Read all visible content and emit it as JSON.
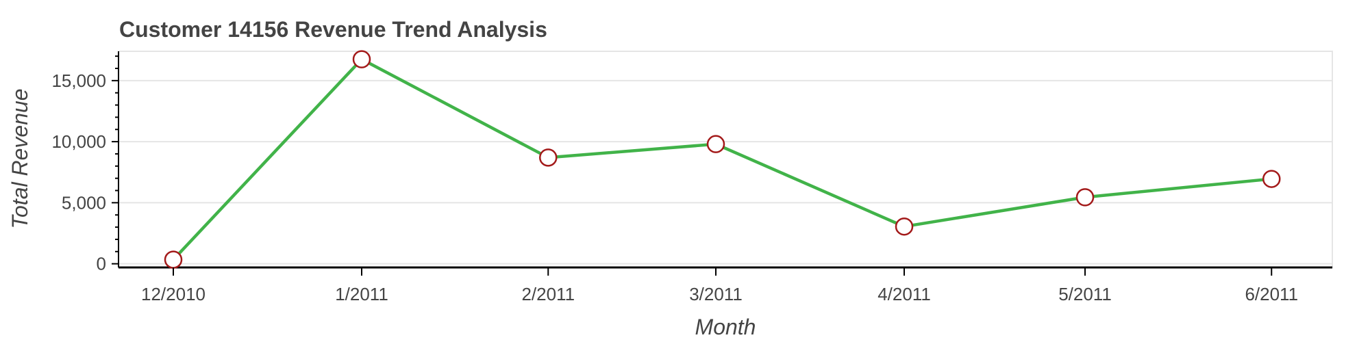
{
  "chart_data": {
    "type": "line",
    "title": "Customer 14156 Revenue Trend Analysis",
    "xlabel": "Month",
    "ylabel": "Total Revenue",
    "categories": [
      "12/2010",
      "1/2011",
      "2/2011",
      "3/2011",
      "4/2011",
      "5/2011",
      "6/2011"
    ],
    "x_position": [
      0,
      1,
      1.99,
      2.88,
      3.88,
      4.84,
      5.83
    ],
    "series": [
      {
        "values": [
          340,
          16750,
          8700,
          9800,
          3050,
          5450,
          6950
        ]
      }
    ],
    "ylim": [
      -300,
      17400
    ],
    "yticks": [
      0,
      5000,
      10000,
      15000
    ],
    "ytick_labels": [
      "0",
      "5,000",
      "10,000",
      "15,000"
    ],
    "grid": true,
    "legend": "none",
    "colors": {
      "line": "#41b349",
      "marker_edge": "#a31a1a",
      "marker_fill": "#ffffff",
      "grid": "#e5e5e5",
      "axis": "#000000"
    }
  }
}
